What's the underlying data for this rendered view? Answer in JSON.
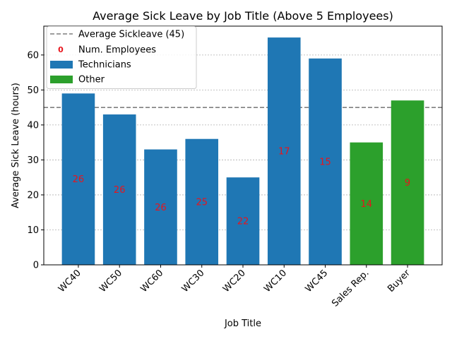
{
  "chart_data": {
    "type": "bar",
    "title": "Average Sick Leave by Job Title (Above 5 Employees)",
    "xlabel": "Job Title",
    "ylabel": "Average Sick Leave (hours)",
    "ylim": [
      0,
      68.25
    ],
    "yticks": [
      0,
      10,
      20,
      30,
      40,
      50,
      60
    ],
    "grid": "y-dotted",
    "categories": [
      "WC40",
      "WC50",
      "WC60",
      "WC30",
      "WC20",
      "WC10",
      "WC45",
      "Sales Rep.",
      "Buyer"
    ],
    "values": [
      49,
      43,
      33,
      36,
      25,
      65,
      59,
      35,
      47
    ],
    "groups": [
      "Technicians",
      "Technicians",
      "Technicians",
      "Technicians",
      "Technicians",
      "Technicians",
      "Technicians",
      "Other",
      "Other"
    ],
    "employee_counts": [
      "26",
      "26",
      "26",
      "25",
      "22",
      "17",
      "15",
      "14",
      "9"
    ],
    "average_line": {
      "value": 45,
      "label": "Average  Sickleave (45)",
      "color": "#7f7f7f"
    },
    "legend": {
      "placement": "top-left",
      "entries": [
        {
          "label": "Average  Sickleave (45)",
          "kind": "dashed-line",
          "color": "#7f7f7f"
        },
        {
          "label": "Num. Employees",
          "kind": "text-marker",
          "marker": "0",
          "color": "#e8141c"
        },
        {
          "label": "Technicians",
          "kind": "patch",
          "color": "#1f77b4"
        },
        {
          "label": "Other",
          "kind": "patch",
          "color": "#2ca02c"
        }
      ]
    },
    "colors": {
      "Technicians": "#1f77b4",
      "Other": "#2ca02c",
      "count_label": "#e8141c"
    }
  }
}
